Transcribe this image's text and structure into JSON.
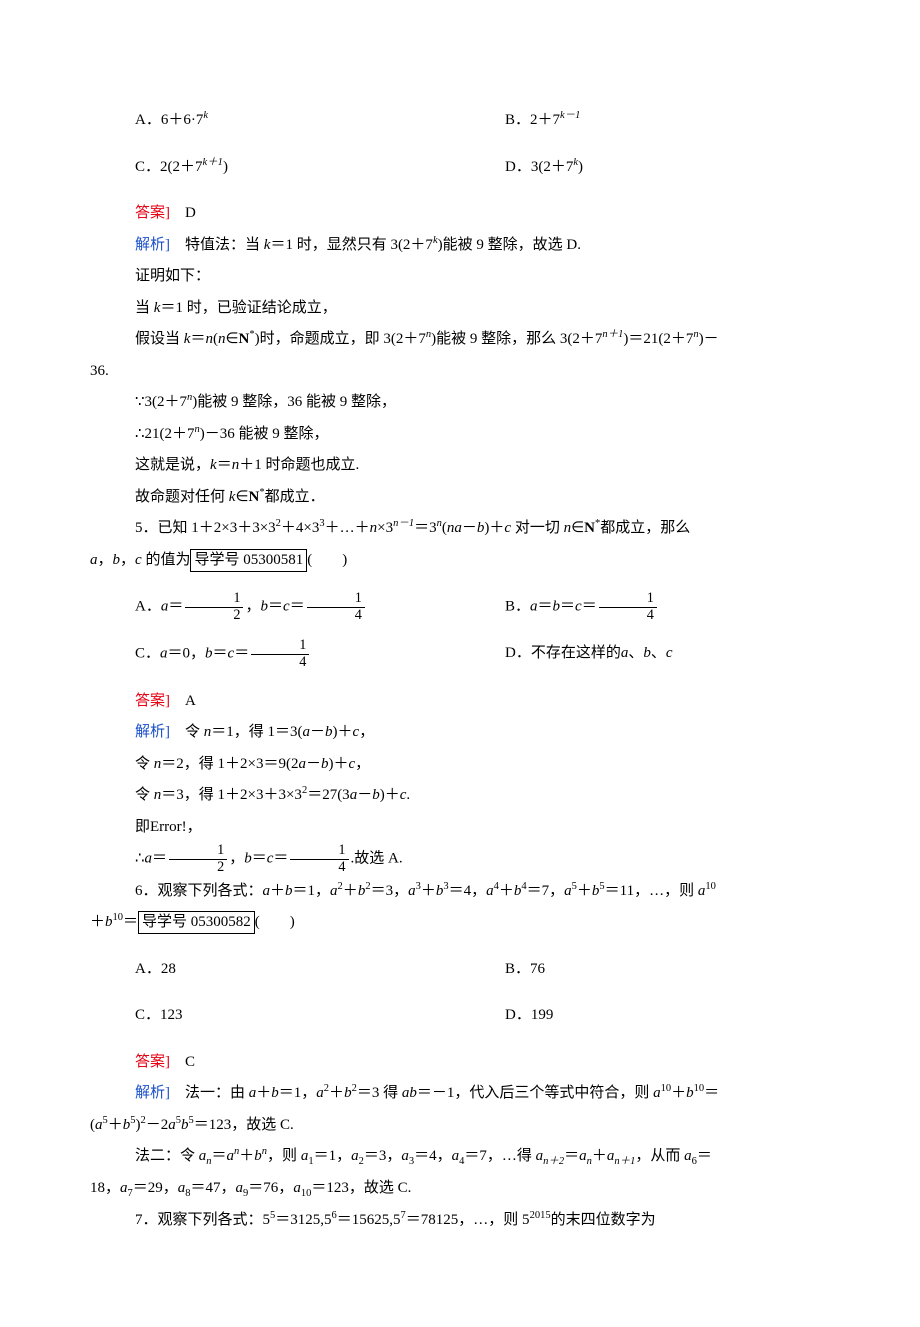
{
  "q4": {
    "optA": "A．6＋6·7",
    "optA_sup": "k",
    "optB": "B．2＋7",
    "optB_sup": "k－1",
    "optC_pre": "C．2(2＋7",
    "optC_sup": "k＋1",
    "optC_post": ")",
    "optD_pre": "D．3(2＋7",
    "optD_sup": "k",
    "optD_post": ")",
    "ansLabel": "答案]",
    "ans": "　D",
    "expLabel": "解析]",
    "exp1_a": "　特值法：当 ",
    "exp1_b": "k",
    "exp1_c": "＝1 时，显然只有 3(2＋7",
    "exp1_sup": "k",
    "exp1_d": ")能被 9 整除，故选 D.",
    "proof_intro": "证明如下：",
    "p1_a": "当 ",
    "p1_b": "k",
    "p1_c": "＝1 时，已验证结论成立，",
    "p2_a": "假设当 ",
    "p2_b": "k",
    "p2_c": "＝",
    "p2_d": "n",
    "p2_e": "(",
    "p2_f": "n",
    "p2_g": "∈",
    "p2_h": "N",
    "p2_i": "*",
    "p2_j": ")时，命题成立，即 3(2＋7",
    "p2_sup1": "n",
    "p2_k": ")能被 9 整除，那么 3(2＋7",
    "p2_sup2": "n＋1",
    "p2_l": ")＝21(2＋7",
    "p2_sup3": "n",
    "p2_m": ")－",
    "p2_tail": "36.",
    "p3_a": "∵3(2＋7",
    "p3_sup": "n",
    "p3_b": ")能被 9 整除，36 能被 9 整除，",
    "p4_a": "∴21(2＋7",
    "p4_sup": "n",
    "p4_b": ")－36 能被 9 整除，",
    "p5_a": "这就是说，",
    "p5_b": "k",
    "p5_c": "＝",
    "p5_d": "n",
    "p5_e": "＋1 时命题也成立.",
    "p6_a": "故命题对任何 ",
    "p6_b": "k",
    "p6_c": "∈",
    "p6_d": "N",
    "p6_e": "*",
    "p6_f": "都成立．"
  },
  "q5": {
    "stem_a": "5．已知 1＋2×3＋3×3",
    "stem_s1": "2",
    "stem_b": "＋4×3",
    "stem_s2": "3",
    "stem_c": "＋…＋",
    "stem_d": "n",
    "stem_e": "×3",
    "stem_s3": "n－1",
    "stem_f": "＝3",
    "stem_s4": "n",
    "stem_g": "(",
    "stem_h": "na",
    "stem_i": "－",
    "stem_j": "b",
    "stem_k": ")＋",
    "stem_l": "c",
    "stem_m": " 对一切 ",
    "stem_n": "n",
    "stem_o": "∈",
    "stem_p": "N",
    "stem_q": "*",
    "stem_r": "都成立，那么",
    "stem2_a": "a",
    "stem2_b": "，",
    "stem2_c": "b",
    "stem2_d": "，",
    "stem2_e": "c",
    "stem2_f": " 的值为",
    "stem2_box": "导学号 05300581",
    "stem2_g": "(　　)",
    "optA_a": "A．",
    "optA_b": "a",
    "optA_c": "＝",
    "optA_num1": "1",
    "optA_den1": "2",
    "optA_d": "，",
    "optA_e": "b",
    "optA_f": "＝",
    "optA_g": "c",
    "optA_h": "＝",
    "optA_num2": "1",
    "optA_den2": "4",
    "optB_a": "B．",
    "optB_b": "a",
    "optB_c": "＝",
    "optB_d": "b",
    "optB_e": "＝",
    "optB_f": "c",
    "optB_g": "＝",
    "optB_num": "1",
    "optB_den": "4",
    "optC_a": "C．",
    "optC_b": "a",
    "optC_c": "＝0，",
    "optC_d": "b",
    "optC_e": "＝",
    "optC_f": "c",
    "optC_g": "＝",
    "optC_num": "1",
    "optC_den": "4",
    "optD_a": "D．不存在这样的",
    "optD_b": "a",
    "optD_c": "、",
    "optD_d": "b",
    "optD_e": "、",
    "optD_f": "c",
    "ansLabel": "答案]",
    "ans": "　A",
    "expLabel": "解析]",
    "e1_a": "　令 ",
    "e1_b": "n",
    "e1_c": "＝1，得 1＝3(",
    "e1_d": "a",
    "e1_e": "－",
    "e1_f": "b",
    "e1_g": ")＋",
    "e1_h": "c",
    "e1_i": "，",
    "e2_a": "令 ",
    "e2_b": "n",
    "e2_c": "＝2，得 1＋2×3＝9(2",
    "e2_d": "a",
    "e2_e": "－",
    "e2_f": "b",
    "e2_g": ")＋",
    "e2_h": "c",
    "e2_i": "，",
    "e3_a": "令 ",
    "e3_b": "n",
    "e3_c": "＝3，得 1＋2×3＋3×3",
    "e3_s": "2",
    "e3_d": "＝27(3",
    "e3_e": "a",
    "e3_f": "－",
    "e3_g": "b",
    "e3_h": ")＋",
    "e3_i": "c",
    "e3_j": ".",
    "e4_a": "即",
    "e4_err": "Error!",
    "e4_b": "，",
    "e5_a": "∴",
    "e5_b": "a",
    "e5_c": "＝",
    "e5_num1": "1",
    "e5_den1": "2",
    "e5_d": "，",
    "e5_e": "b",
    "e5_f": "＝",
    "e5_g": "c",
    "e5_h": "＝",
    "e5_num2": "1",
    "e5_den2": "4",
    "e5_i": ".故选 A."
  },
  "q6": {
    "stem_a": "6．观察下列各式：",
    "stem_b": "a",
    "stem_c": "＋",
    "stem_d": "b",
    "stem_e": "＝1，",
    "stem_f": "a",
    "stem_s1": "2",
    "stem_g": "＋",
    "stem_h": "b",
    "stem_s2": "2",
    "stem_i": "＝3，",
    "stem_j": "a",
    "stem_s3": "3",
    "stem_k": "＋",
    "stem_l": "b",
    "stem_s4": "3",
    "stem_m": "＝4，",
    "stem_n": "a",
    "stem_s5": "4",
    "stem_o": "＋",
    "stem_p": "b",
    "stem_s6": "4",
    "stem_q": "＝7，",
    "stem_r": "a",
    "stem_s7": "5",
    "stem_s": "＋",
    "stem_t": "b",
    "stem_s8": "5",
    "stem_u": "＝11，…，则 ",
    "stem_v": "a",
    "stem_s9": "10",
    "stem2_a": "＋",
    "stem2_b": "b",
    "stem2_s": "10",
    "stem2_c": "＝",
    "stem2_box": "导学号 05300582",
    "stem2_d": "(　　)",
    "optA": "A．28",
    "optB": "B．76",
    "optC": "C．123",
    "optD": "D．199",
    "ansLabel": "答案]",
    "ans": "　C",
    "expLabel": "解析]",
    "e1_a": "　法一：由 ",
    "e1_b": "a",
    "e1_c": "＋",
    "e1_d": "b",
    "e1_e": "＝1，",
    "e1_f": "a",
    "e1_s1": "2",
    "e1_g": "＋",
    "e1_h": "b",
    "e1_s2": "2",
    "e1_i": "＝3 得 ",
    "e1_j": "ab",
    "e1_k": "＝－1，代入后三个等式中符合，则 ",
    "e1_l": "a",
    "e1_s3": "10",
    "e1_m": "＋",
    "e1_n": "b",
    "e1_s4": "10",
    "e1_o": "＝",
    "e1b_a": "(",
    "e1b_b": "a",
    "e1b_s1": "5",
    "e1b_c": "＋",
    "e1b_d": "b",
    "e1b_s2": "5",
    "e1b_e": ")",
    "e1b_s3": "2",
    "e1b_f": "－2",
    "e1b_g": "a",
    "e1b_s4": "5",
    "e1b_h": "b",
    "e1b_s5": "5",
    "e1b_i": "＝123，故选 C.",
    "e2_a": "法二：令 ",
    "e2_b": "a",
    "e2_sub_n": "n",
    "e2_c": "＝",
    "e2_d": "a",
    "e2_sup_n": "n",
    "e2_e": "＋",
    "e2_f": "b",
    "e2_sup_n2": "n",
    "e2_g": "，则 ",
    "e2_h": "a",
    "e2_sub1": "1",
    "e2_i": "＝1，",
    "e2_j": "a",
    "e2_sub2": "2",
    "e2_k": "＝3，",
    "e2_l": "a",
    "e2_sub3": "3",
    "e2_m": "＝4，",
    "e2_n": "a",
    "e2_sub4": "4",
    "e2_o": "＝7，…得 ",
    "e2_p": "a",
    "e2_subp2": "n＋2",
    "e2_q": "＝",
    "e2_r": "a",
    "e2_subn": "n",
    "e2_s": "＋",
    "e2_t": "a",
    "e2_subp1": "n＋1",
    "e2_u": "，从而 ",
    "e2_v": "a",
    "e2_sub6": "6",
    "e2_w": "＝",
    "e2b_a": "18，",
    "e2b_b": "a",
    "e2b_s7": "7",
    "e2b_c": "＝29，",
    "e2b_d": "a",
    "e2b_s8": "8",
    "e2b_e": "＝47，",
    "e2b_f": "a",
    "e2b_s9": "9",
    "e2b_g": "＝76，",
    "e2b_h": "a",
    "e2b_s10": "10",
    "e2b_i": "＝123，故选 C."
  },
  "q7": {
    "stem_a": "7．观察下列各式：5",
    "stem_s1": "5",
    "stem_b": "＝3125,5",
    "stem_s2": "6",
    "stem_c": "＝15625,5",
    "stem_s3": "7",
    "stem_d": "＝78125，…，则 5",
    "stem_s4": "2015",
    "stem_e": "的末四位数字为"
  }
}
